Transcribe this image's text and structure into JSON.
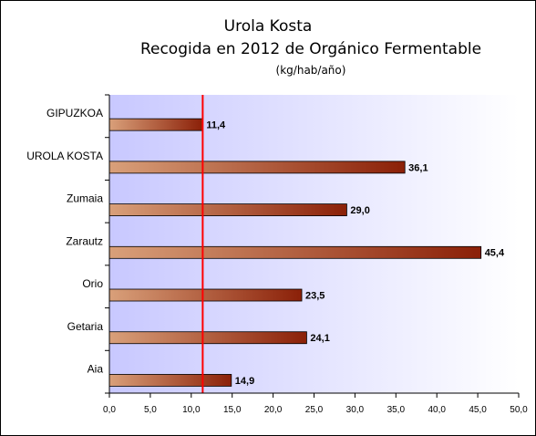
{
  "chart_data": {
    "type": "bar",
    "orientation": "horizontal",
    "title": "Urola Kosta",
    "subtitle": "Recogida en 2012 de Orgánico Fermentable",
    "unit_label": "(kg/hab/año)",
    "categories": [
      "GIPUZKOA",
      "UROLA KOSTA",
      "Zumaia",
      "Zarautz",
      "Orio",
      "Getaria",
      "Aia"
    ],
    "values": [
      11.4,
      36.1,
      29.0,
      45.4,
      23.5,
      24.1,
      14.9
    ],
    "value_labels": [
      "11,4",
      "36,1",
      "29,0",
      "45,4",
      "23,5",
      "24,1",
      "14,9"
    ],
    "xlim": [
      0,
      50
    ],
    "xticks": [
      0,
      5,
      10,
      15,
      20,
      25,
      30,
      35,
      40,
      45,
      50
    ],
    "xtick_labels": [
      "0,0",
      "5,0",
      "10,0",
      "15,0",
      "20,0",
      "25,0",
      "30,0",
      "35,0",
      "40,0",
      "45,0",
      "50,0"
    ],
    "reference_line": 11.4,
    "grid": false,
    "legend": "none",
    "colors": {
      "bar_light": "#d9a07a",
      "bar_dark": "#8b2008",
      "reference_line": "#ff0000",
      "plot_bg_left": "#c8c8ff",
      "plot_bg_right": "#ffffff"
    }
  }
}
